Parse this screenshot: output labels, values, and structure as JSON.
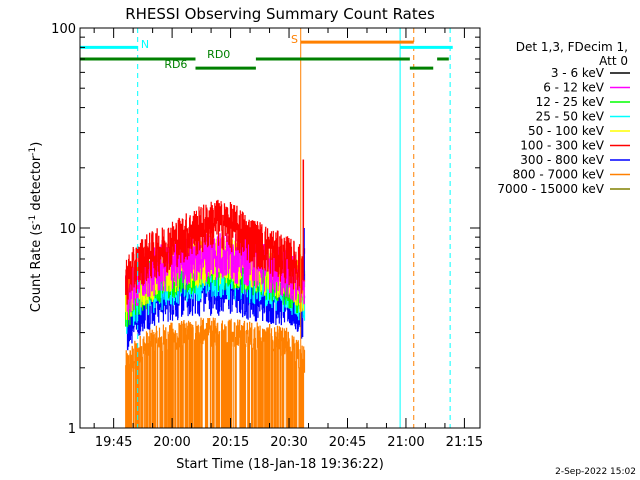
{
  "chart_data": {
    "type": "line",
    "title": "RHESSI Observing Summary Count Rates",
    "xlabel": "Start Time (18-Jan-18 19:36:22)",
    "ylabel": "Count Rate (s",
    "ylabel_sup": "-1",
    "ylabel_rest": " detector",
    "ylabel_end": ")",
    "y_scale": "log",
    "ylim": [
      1,
      100
    ],
    "xlim": [
      "19:36:22",
      "21:19:00"
    ],
    "x_ticks": [
      "19:45",
      "20:00",
      "20:15",
      "20:30",
      "20:45",
      "21:00",
      "21:15"
    ],
    "y_ticks": [
      "1",
      "10",
      "100"
    ],
    "footer": "2-Sep-2022 15:02",
    "legend": {
      "placement": "right",
      "header_line1": "Det 1,3, FDecim 1,",
      "header_line2": "Att 0",
      "entries": [
        {
          "label": "3 - 6 keV",
          "color": "#000000"
        },
        {
          "label": "6 - 12 keV",
          "color": "#ff00ff"
        },
        {
          "label": "12 - 25 keV",
          "color": "#00ff00"
        },
        {
          "label": "25 - 50 keV",
          "color": "#00ffff"
        },
        {
          "label": "50 - 100 keV",
          "color": "#ffff00"
        },
        {
          "label": "100 - 300 keV",
          "color": "#ff0000"
        },
        {
          "label": "300 - 800 keV",
          "color": "#0000ff"
        },
        {
          "label": "800 - 7000 keV",
          "color": "#ff8000"
        },
        {
          "label": "7000 - 15000 keV",
          "color": "#808000"
        }
      ]
    },
    "flags": [
      {
        "label": "N",
        "color": "#00ffff",
        "y": 80,
        "segments": [
          [
            "19:36:22",
            "19:51:10"
          ],
          [
            "20:58:30",
            "21:12:00"
          ]
        ]
      },
      {
        "label": "S",
        "color": "#ff8000",
        "y": 85,
        "segments": [
          [
            "20:33:00",
            "21:02:00"
          ]
        ]
      },
      {
        "label": "RD0",
        "color": "#008000",
        "y": 70,
        "segments": [
          [
            "19:36:22",
            "20:06:00"
          ],
          [
            "20:21:30",
            "21:01:00"
          ],
          [
            "21:08:00",
            "21:11:00"
          ]
        ]
      },
      {
        "label": "RD6",
        "color": "#008000",
        "y": 63,
        "segments": [
          [
            "20:06:00",
            "20:21:30"
          ],
          [
            "21:01:00",
            "21:07:00"
          ]
        ]
      }
    ],
    "vlines": [
      {
        "time": "19:36:22",
        "color": "#00ffff",
        "dashed": false
      },
      {
        "time": "19:51:10",
        "color": "#00ffff",
        "dashed": true
      },
      {
        "time": "20:33:00",
        "color": "#ff8000",
        "dashed": false
      },
      {
        "time": "20:58:30",
        "color": "#00ffff",
        "dashed": false
      },
      {
        "time": "21:02:00",
        "color": "#ff8000",
        "dashed": true
      },
      {
        "time": "21:11:20",
        "color": "#00ffff",
        "dashed": true
      }
    ],
    "data_window": [
      "19:48:00",
      "20:34:00"
    ],
    "series": [
      {
        "color": "#ff8000",
        "values": [
          1.9,
          2.4,
          2.6,
          2.7,
          2.8,
          2.8,
          2.8,
          2.7,
          2.6,
          2.5,
          2.0
        ]
      },
      {
        "color": "#0000ff",
        "values": [
          3.3,
          4.2,
          4.6,
          4.8,
          5.0,
          5.1,
          5.0,
          4.8,
          4.6,
          4.4,
          3.8
        ]
      },
      {
        "color": "#00ffff",
        "values": [
          4.0,
          5.0,
          5.4,
          5.8,
          6.0,
          6.2,
          6.0,
          5.8,
          5.5,
          5.2,
          4.5
        ]
      },
      {
        "color": "#00ff00",
        "values": [
          4.3,
          5.4,
          5.9,
          6.3,
          6.6,
          6.8,
          6.6,
          6.3,
          6.0,
          5.6,
          4.9
        ]
      },
      {
        "color": "#ffff00",
        "values": [
          4.5,
          5.7,
          6.2,
          6.7,
          7.0,
          7.2,
          7.0,
          6.7,
          6.3,
          5.9,
          5.1
        ]
      },
      {
        "color": "#ff00ff",
        "values": [
          4.6,
          5.9,
          6.5,
          7.0,
          7.4,
          7.6,
          7.4,
          7.0,
          6.6,
          6.2,
          5.3
        ]
      },
      {
        "color": "#ff0000",
        "values": [
          5.6,
          7.2,
          8.0,
          9.0,
          10.0,
          11.0,
          10.5,
          9.0,
          8.0,
          7.2,
          6.3
        ]
      }
    ]
  }
}
